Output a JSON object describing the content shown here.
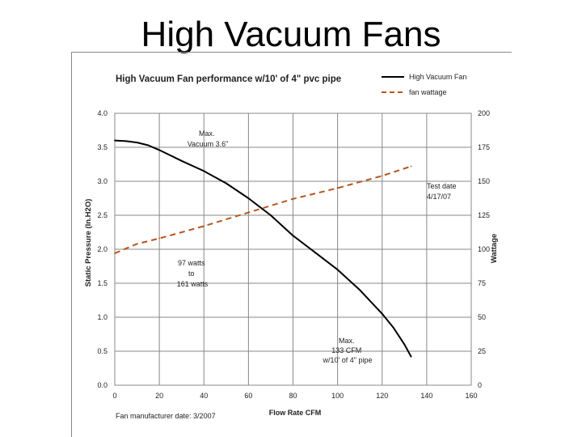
{
  "slide": {
    "title": "High Vacuum Fans"
  },
  "chart_data": {
    "type": "line",
    "title": "High Vacuum Fan performance w/10' of 4\" pvc pipe",
    "xlabel": "Flow Rate CFM",
    "ylabel": "Static Pressure (In.H2O)",
    "y2label": "Wattage",
    "xlim": [
      0,
      160
    ],
    "ylim": [
      0,
      4.0
    ],
    "y2lim": [
      0,
      200
    ],
    "x_ticks": [
      0,
      20,
      40,
      60,
      80,
      100,
      120,
      140,
      160
    ],
    "y_ticks": [
      "0.0",
      "0.5",
      "1.0",
      "1.5",
      "2.0",
      "2.5",
      "3.0",
      "3.5",
      "4.0"
    ],
    "y2_ticks": [
      0,
      25,
      50,
      75,
      100,
      125,
      150,
      175,
      200
    ],
    "grid": true,
    "legend_position": "top-right",
    "series": [
      {
        "name": "High Vacuum Fan",
        "axis": "left",
        "color": "#000000",
        "style": "solid",
        "x": [
          0,
          5,
          10,
          15,
          20,
          30,
          40,
          50,
          60,
          70,
          80,
          90,
          100,
          110,
          120,
          125,
          130,
          133
        ],
        "y": [
          3.6,
          3.59,
          3.57,
          3.53,
          3.46,
          3.3,
          3.15,
          2.97,
          2.75,
          2.5,
          2.2,
          1.95,
          1.7,
          1.4,
          1.05,
          0.85,
          0.6,
          0.42
        ]
      },
      {
        "name": "fan wattage",
        "axis": "right",
        "color": "#b5561f",
        "style": "dashed",
        "x": [
          0,
          10,
          20,
          40,
          60,
          80,
          100,
          120,
          133
        ],
        "y": [
          97,
          104,
          108,
          117,
          127,
          137,
          145,
          154,
          161
        ]
      }
    ],
    "annotations": [
      {
        "id": "max-vacuum",
        "lines": [
          "Max.",
          "Vacuum 3.6\""
        ]
      },
      {
        "id": "test-date",
        "lines": [
          "Test date",
          "4/17/07"
        ]
      },
      {
        "id": "wattage-range",
        "lines": [
          "97 watts",
          "to",
          "161 watts"
        ]
      },
      {
        "id": "max-cfm",
        "lines": [
          "Max.",
          "133 CFM",
          "w/10' of 4\" pipe"
        ]
      }
    ],
    "footnote": "Fan manufacturer date: 3/2007"
  }
}
